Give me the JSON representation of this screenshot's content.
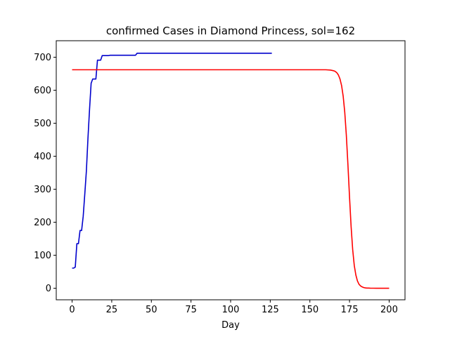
{
  "chart_data": {
    "type": "line",
    "title": "confirmed Cases in Diamond Princess, sol=162",
    "xlabel": "Day",
    "ylabel": "",
    "xlim": [
      -10,
      210
    ],
    "ylim": [
      -35,
      750
    ],
    "xticks": [
      0,
      25,
      50,
      75,
      100,
      125,
      150,
      175,
      200
    ],
    "yticks": [
      0,
      100,
      200,
      300,
      400,
      500,
      600,
      700
    ],
    "grid": false,
    "legend": "none",
    "series": [
      {
        "color": "#0000cc",
        "x": [
          0,
          1,
          2,
          3,
          4,
          5,
          6,
          7,
          8,
          9,
          10,
          11,
          12,
          13,
          14,
          15,
          16,
          17,
          18,
          19,
          20,
          21,
          22,
          23,
          24,
          25,
          26,
          27,
          28,
          29,
          30,
          31,
          32,
          33,
          34,
          35,
          36,
          37,
          38,
          39,
          40,
          41,
          42,
          50,
          60,
          70,
          80,
          90,
          100,
          110,
          120,
          126
        ],
        "y": [
          61,
          61,
          64,
          135,
          135,
          175,
          175,
          218,
          285,
          355,
          454,
          542,
          621,
          634,
          634,
          634,
          691,
          691,
          691,
          705,
          705,
          705,
          705,
          705,
          706,
          706,
          706,
          706,
          706,
          706,
          706,
          706,
          706,
          706,
          706,
          706,
          706,
          706,
          706,
          706,
          706,
          712,
          712,
          712,
          712,
          712,
          712,
          712,
          712,
          712,
          712,
          712
        ]
      },
      {
        "color": "#ff0000",
        "x": [
          0,
          20,
          40,
          60,
          80,
          100,
          120,
          140,
          150,
          155,
          160,
          163,
          165,
          166,
          167,
          168,
          169,
          170,
          171,
          172,
          173,
          174,
          175,
          176,
          177,
          178,
          179,
          180,
          181,
          182,
          183,
          184,
          185,
          186,
          187,
          188,
          190,
          192,
          195,
          200
        ],
        "y": [
          662,
          662,
          662,
          662,
          662,
          662,
          662,
          662,
          662,
          662,
          662,
          661,
          659,
          657,
          653,
          646,
          634,
          614,
          582,
          533,
          463,
          374,
          277,
          187,
          117,
          69,
          40,
          22,
          12,
          7,
          4,
          2,
          1,
          0.6,
          0.4,
          0.2,
          0.1,
          0,
          0,
          0
        ]
      }
    ]
  }
}
